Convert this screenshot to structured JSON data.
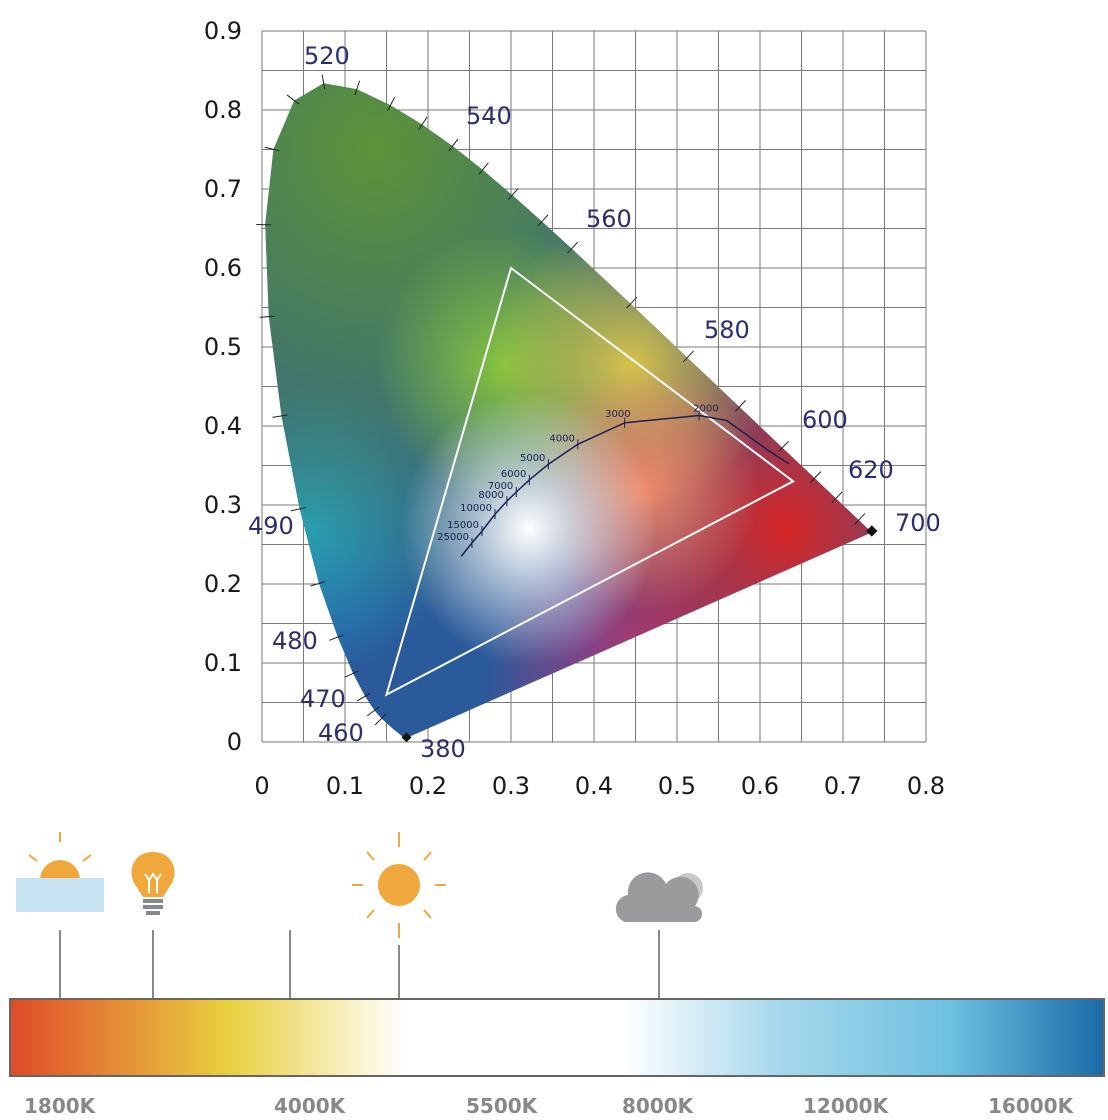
{
  "chart_data": {
    "type": "diagram",
    "axes": {
      "x_ticks": [
        "0",
        "0.1",
        "0.2",
        "0.3",
        "0.4",
        "0.5",
        "0.6",
        "0.7",
        "0.8"
      ],
      "y_ticks": [
        "0",
        "0.1",
        "0.2",
        "0.3",
        "0.4",
        "0.5",
        "0.6",
        "0.7",
        "0.8",
        "0.9"
      ],
      "xlim": [
        0,
        0.8
      ],
      "ylim": [
        0,
        0.9
      ],
      "grid": true
    },
    "spectral_locus_labels": [
      {
        "text": "380",
        "wavelength": 380
      },
      {
        "text": "460",
        "wavelength": 460
      },
      {
        "text": "470",
        "wavelength": 470
      },
      {
        "text": "480",
        "wavelength": 480
      },
      {
        "text": "490",
        "wavelength": 490
      },
      {
        "text": "520",
        "wavelength": 520
      },
      {
        "text": "540",
        "wavelength": 540
      },
      {
        "text": "560",
        "wavelength": 560
      },
      {
        "text": "580",
        "wavelength": 580
      },
      {
        "text": "600",
        "wavelength": 600
      },
      {
        "text": "620",
        "wavelength": 620
      },
      {
        "text": "700",
        "wavelength": 700
      }
    ],
    "gamut_triangle": [
      {
        "x": 0.64,
        "y": 0.33
      },
      {
        "x": 0.3,
        "y": 0.6
      },
      {
        "x": 0.15,
        "y": 0.06
      }
    ],
    "planckian_locus_labels": [
      {
        "text": "2000",
        "kelvin": 2000
      },
      {
        "text": "3000",
        "kelvin": 3000
      },
      {
        "text": "4000",
        "kelvin": 4000
      },
      {
        "text": "5000",
        "kelvin": 5000
      },
      {
        "text": "6000",
        "kelvin": 6000
      },
      {
        "text": "7000",
        "kelvin": 7000
      },
      {
        "text": "8000",
        "kelvin": 8000
      },
      {
        "text": "10000",
        "kelvin": 10000
      },
      {
        "text": "15000",
        "kelvin": 15000
      },
      {
        "text": "25000",
        "kelvin": 25000
      }
    ]
  },
  "temperature_scale": {
    "labels": [
      "1800K",
      "4000K",
      "5500K",
      "8000K",
      "12000K",
      "16000K"
    ],
    "icons": [
      {
        "name": "sunrise-icon"
      },
      {
        "name": "light-bulb-icon"
      },
      {
        "name": "crescent-moon-icon"
      },
      {
        "name": "sun-icon"
      },
      {
        "name": "cloud-icon"
      }
    ],
    "colors": {
      "warm": "#e04a2a",
      "yellow": "#e8d040",
      "white": "#ffffff",
      "cool": "#7ec3e0",
      "deep_blue": "#1a6aa8"
    }
  }
}
